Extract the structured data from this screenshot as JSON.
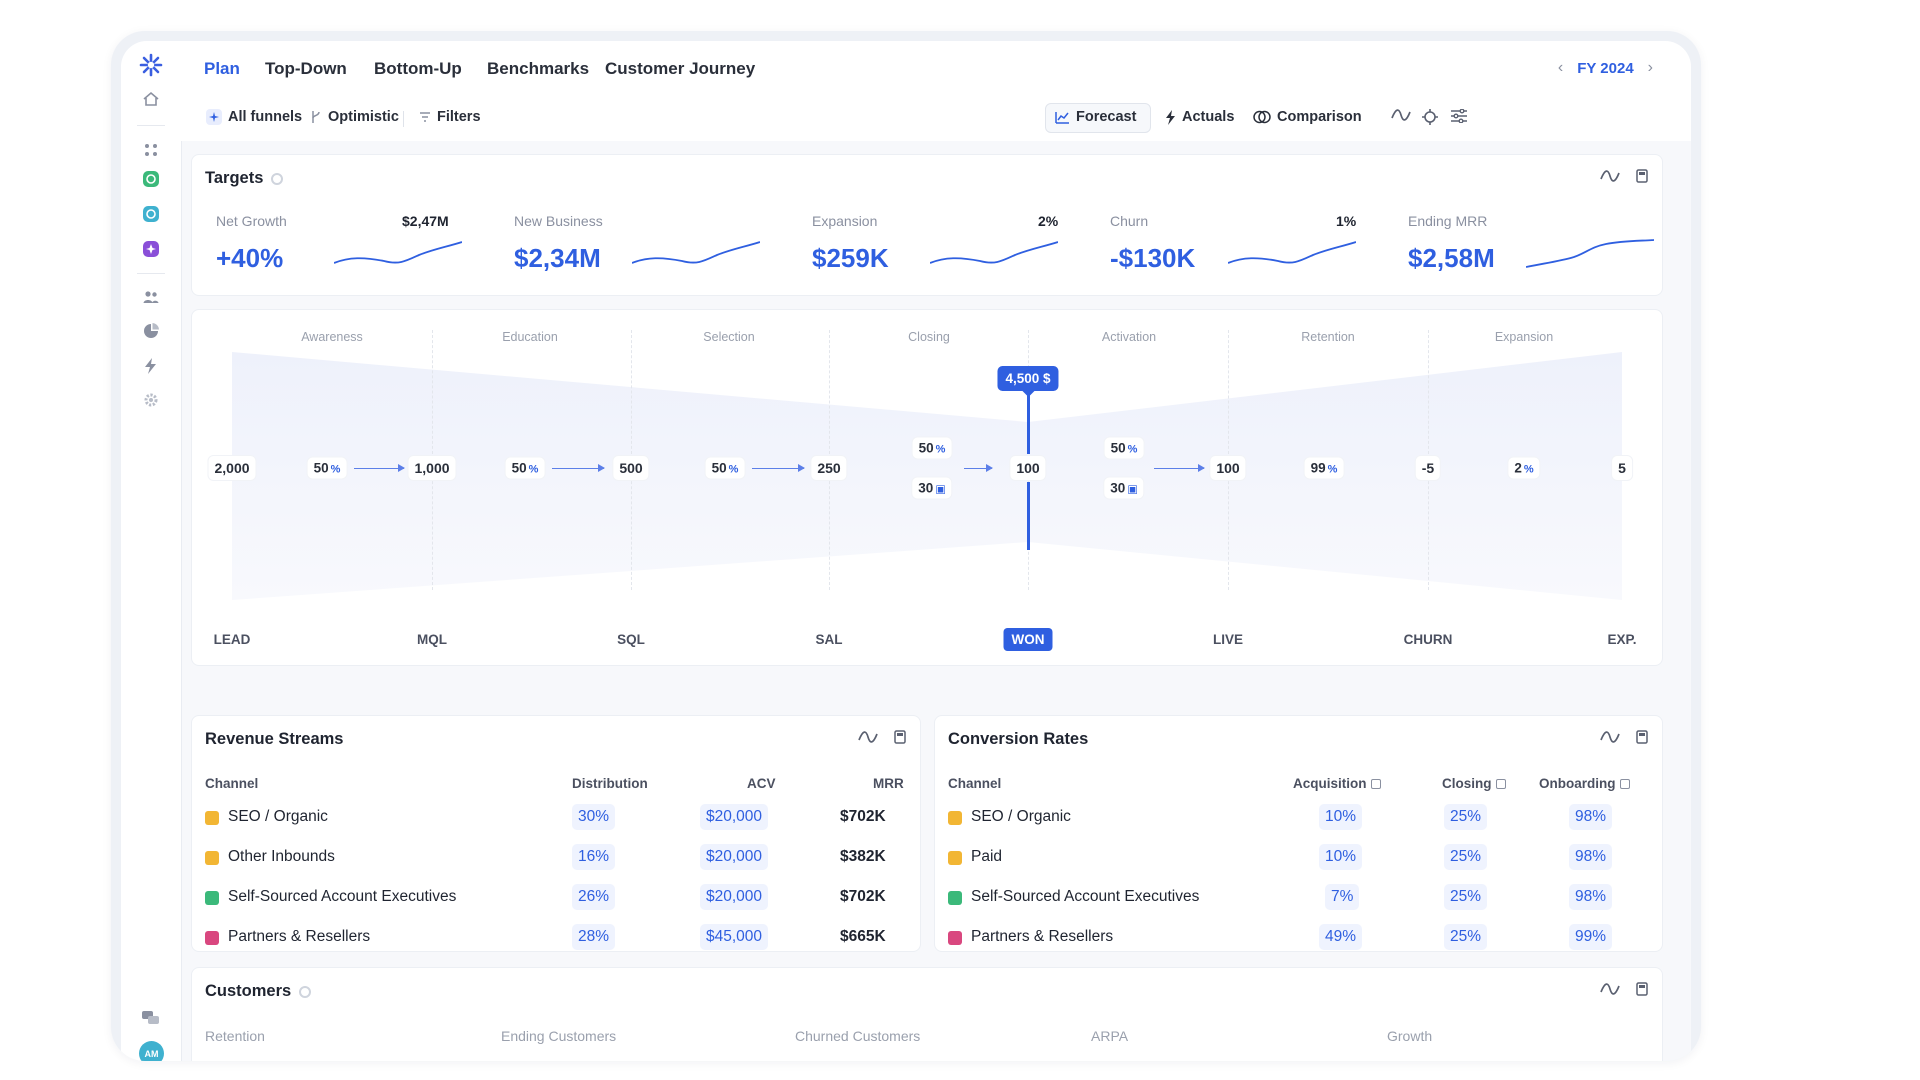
{
  "nav": {
    "tabs": [
      "Plan",
      "Top-Down",
      "Bottom-Up",
      "Benchmarks",
      "Customer Journey"
    ],
    "active_tab": "Plan",
    "fiscal_year": "FY 2024"
  },
  "toolbar": {
    "all_funnels": "All funnels",
    "scenario": "Optimistic",
    "filters": "Filters",
    "forecast": "Forecast",
    "actuals": "Actuals",
    "comparison": "Comparison"
  },
  "targets": {
    "title": "Targets",
    "kpis": [
      {
        "label": "Net Growth",
        "badge": "$2,47M",
        "value": "+40%"
      },
      {
        "label": "New Business",
        "badge": "",
        "value": "$2,34M"
      },
      {
        "label": "Expansion",
        "badge": "2%",
        "value": "$259K"
      },
      {
        "label": "Churn",
        "badge": "1%",
        "value": "-$130K"
      },
      {
        "label": "Ending MRR",
        "badge": "",
        "value": "$2,58M"
      }
    ]
  },
  "funnel": {
    "stages": [
      "Awareness",
      "Education",
      "Selection",
      "Closing",
      "Activation",
      "Retention",
      "Expansion"
    ],
    "nodes": [
      "2,000",
      "1,000",
      "500",
      "250",
      "100",
      "100",
      "-5",
      "5"
    ],
    "rates": [
      "50",
      "50",
      "50",
      "50",
      "50",
      "99",
      "2"
    ],
    "rate_unit": "%",
    "days": [
      "30",
      "30"
    ],
    "won_amount": "4,500 $",
    "bottom_labels": [
      "LEAD",
      "MQL",
      "SQL",
      "SAL",
      "WON",
      "LIVE",
      "CHURN",
      "EXP."
    ]
  },
  "revenue_streams": {
    "title": "Revenue Streams",
    "headers": {
      "channel": "Channel",
      "distribution": "Distribution",
      "acv": "ACV",
      "mrr": "MRR"
    },
    "rows": [
      {
        "channel": "SEO / Organic",
        "color": "#f2b634",
        "distribution": "30%",
        "acv": "$20,000",
        "mrr": "$702K"
      },
      {
        "channel": "Other Inbounds",
        "color": "#f2b634",
        "distribution": "16%",
        "acv": "$20,000",
        "mrr": "$382K"
      },
      {
        "channel": "Self-Sourced Account Executives",
        "color": "#3bb97a",
        "distribution": "26%",
        "acv": "$20,000",
        "mrr": "$702K"
      },
      {
        "channel": "Partners & Resellers",
        "color": "#d9477f",
        "distribution": "28%",
        "acv": "$45,000",
        "mrr": "$665K"
      }
    ]
  },
  "conversion_rates": {
    "title": "Conversion Rates",
    "headers": {
      "channel": "Channel",
      "acquisition": "Acquisition",
      "closing": "Closing",
      "onboarding": "Onboarding"
    },
    "rows": [
      {
        "channel": "SEO / Organic",
        "color": "#f2b634",
        "acquisition": "10%",
        "closing": "25%",
        "onboarding": "98%"
      },
      {
        "channel": "Paid",
        "color": "#f2b634",
        "acquisition": "10%",
        "closing": "25%",
        "onboarding": "98%"
      },
      {
        "channel": "Self-Sourced Account Executives",
        "color": "#3bb97a",
        "acquisition": "7%",
        "closing": "25%",
        "onboarding": "98%"
      },
      {
        "channel": "Partners & Resellers",
        "color": "#d9477f",
        "acquisition": "49%",
        "closing": "25%",
        "onboarding": "99%"
      }
    ]
  },
  "customers": {
    "title": "Customers",
    "columns": [
      "Retention",
      "Ending Customers",
      "Churned Customers",
      "ARPA",
      "Growth"
    ]
  },
  "user": {
    "initials": "AM"
  },
  "colors": {
    "accent": "#2f5fe0",
    "text": "#1f2430",
    "muted": "#8a90a0"
  }
}
